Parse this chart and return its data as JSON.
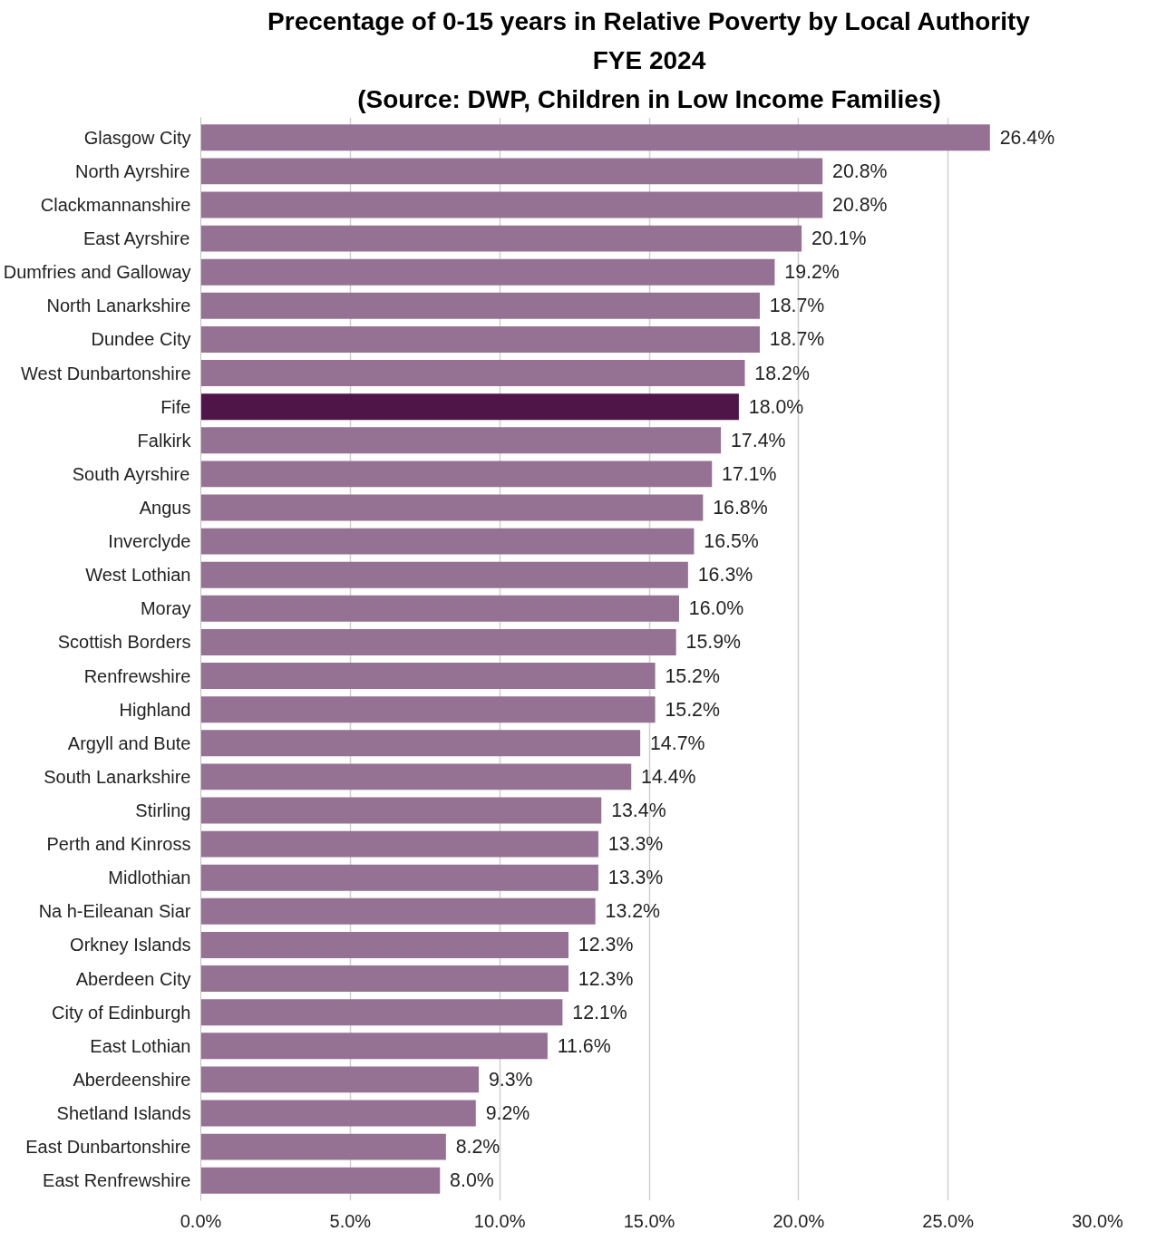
{
  "chart_data": {
    "type": "bar",
    "orientation": "horizontal",
    "title": "Precentage of 0-15 years in Relative Poverty by Local Authority",
    "subtitle": "FYE 2024",
    "annotations": [
      "(Source: DWP, Children in Low Income Families)"
    ],
    "categories": [
      "Glasgow City",
      "North Ayrshire",
      "Clackmannanshire",
      "East Ayrshire",
      "Dumfries and Galloway",
      "North Lanarkshire",
      "Dundee City",
      "West Dunbartonshire",
      "Fife",
      "Falkirk",
      "South Ayrshire",
      "Angus",
      "Inverclyde",
      "West Lothian",
      "Moray",
      "Scottish Borders",
      "Renfrewshire",
      "Highland",
      "Argyll and Bute",
      "South Lanarkshire",
      "Stirling",
      "Perth and Kinross",
      "Midlothian",
      "Na h-Eileanan Siar",
      "Orkney Islands",
      "Aberdeen City",
      "City of Edinburgh",
      "East Lothian",
      "Aberdeenshire",
      "Shetland Islands",
      "East Dunbartonshire",
      "East Renfrewshire"
    ],
    "values": [
      26.4,
      20.8,
      20.8,
      20.1,
      19.2,
      18.7,
      18.7,
      18.2,
      18.0,
      17.4,
      17.1,
      16.8,
      16.5,
      16.3,
      16.0,
      15.9,
      15.2,
      15.2,
      14.7,
      14.4,
      13.4,
      13.3,
      13.3,
      13.2,
      12.3,
      12.3,
      12.1,
      11.6,
      9.3,
      9.2,
      8.2,
      8.0
    ],
    "value_labels": [
      "26.4%",
      "20.8%",
      "20.8%",
      "20.1%",
      "19.2%",
      "18.7%",
      "18.7%",
      "18.2%",
      "18.0%",
      "17.4%",
      "17.1%",
      "16.8%",
      "16.5%",
      "16.3%",
      "16.0%",
      "15.9%",
      "15.2%",
      "15.2%",
      "14.7%",
      "14.4%",
      "13.4%",
      "13.3%",
      "13.3%",
      "13.2%",
      "12.3%",
      "12.3%",
      "12.1%",
      "11.6%",
      "9.3%",
      "9.2%",
      "8.2%",
      "8.0%"
    ],
    "colors": [
      "#957193",
      "#957193",
      "#957193",
      "#957193",
      "#957193",
      "#957193",
      "#957193",
      "#957193",
      "#4f1549",
      "#957193",
      "#957193",
      "#957193",
      "#957193",
      "#957193",
      "#957193",
      "#957193",
      "#957193",
      "#957193",
      "#957193",
      "#957193",
      "#957193",
      "#957193",
      "#957193",
      "#957193",
      "#957193",
      "#957193",
      "#957193",
      "#957193",
      "#957193",
      "#957193",
      "#957193",
      "#957193"
    ],
    "xlim": [
      0,
      30
    ],
    "xticks": [
      {
        "value": 0,
        "label": "0.0%"
      },
      {
        "value": 5,
        "label": "5.0%"
      },
      {
        "value": 10,
        "label": "10.0%"
      },
      {
        "value": 15,
        "label": "15.0%"
      },
      {
        "value": 20,
        "label": "20.0%"
      },
      {
        "value": 25,
        "label": "25.0%"
      },
      {
        "value": 30,
        "label": "30.0%"
      }
    ],
    "grid": "x"
  }
}
